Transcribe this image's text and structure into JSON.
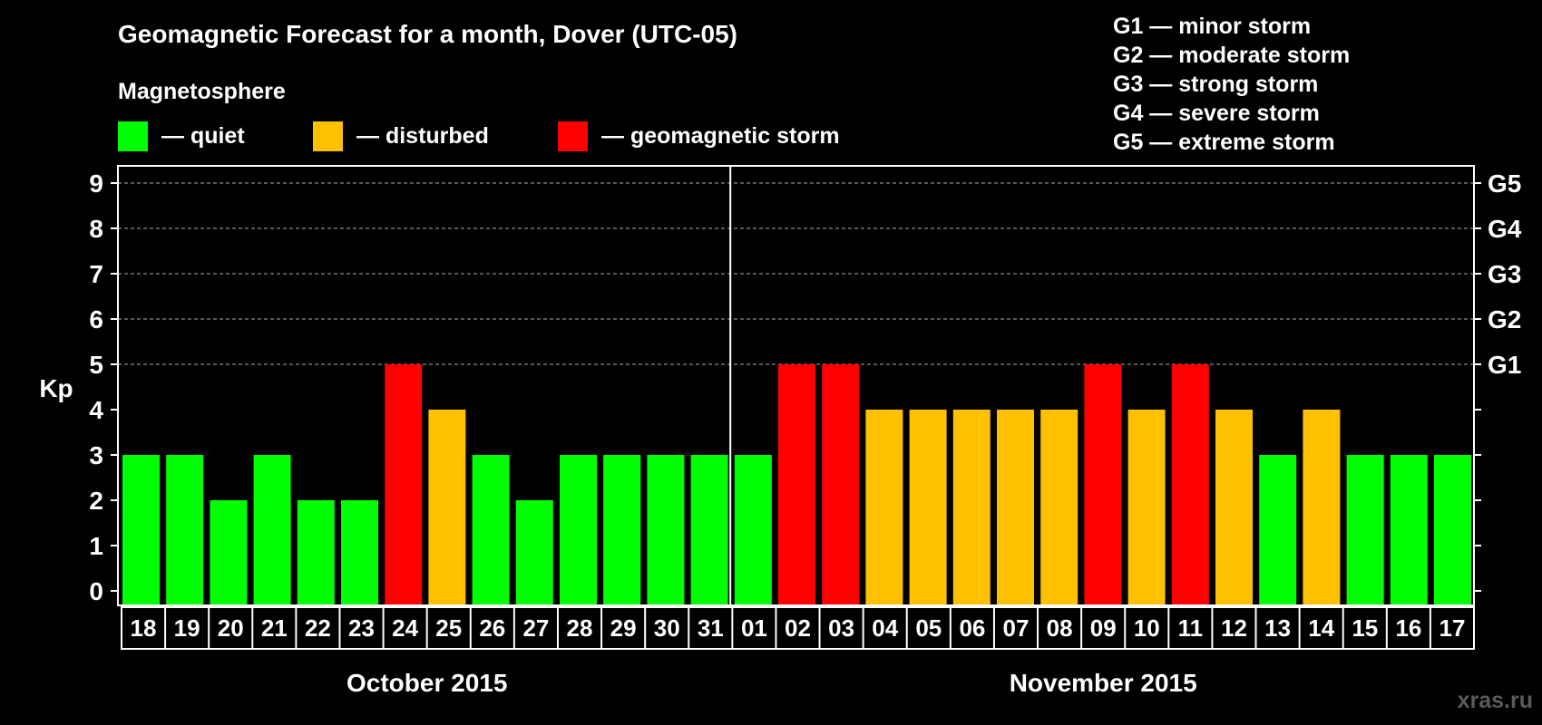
{
  "title": "Geomagnetic Forecast for a month, Dover (UTC-05)",
  "legend": {
    "heading": "Magnetosphere",
    "items": [
      {
        "label": "— quiet",
        "color": "#00ff00"
      },
      {
        "label": "— disturbed",
        "color": "#ffc000"
      },
      {
        "label": "— geomagnetic storm",
        "color": "#ff0000"
      }
    ]
  },
  "storm_scale": [
    "G1 — minor storm",
    "G2 — moderate storm",
    "G3 — strong storm",
    "G4 — severe storm",
    "G5 — extreme storm"
  ],
  "watermark": "xras.ru",
  "chart_data": {
    "type": "bar",
    "ylabel": "Kp",
    "ylim": [
      0,
      9
    ],
    "yticks": [
      0,
      1,
      2,
      3,
      4,
      5,
      6,
      7,
      8,
      9
    ],
    "right_ticks": [
      {
        "value": 5,
        "label": "G1"
      },
      {
        "value": 6,
        "label": "G2"
      },
      {
        "value": 7,
        "label": "G3"
      },
      {
        "value": 8,
        "label": "G4"
      },
      {
        "value": 9,
        "label": "G5"
      }
    ],
    "grid": "dashed horizontal at Kp 5–9",
    "categories": [
      "18",
      "19",
      "20",
      "21",
      "22",
      "23",
      "24",
      "25",
      "26",
      "27",
      "28",
      "29",
      "30",
      "31",
      "01",
      "02",
      "03",
      "04",
      "05",
      "06",
      "07",
      "08",
      "09",
      "10",
      "11",
      "12",
      "13",
      "14",
      "15",
      "16",
      "17"
    ],
    "values": [
      3,
      3,
      2,
      3,
      2,
      2,
      5,
      4,
      3,
      2,
      3,
      3,
      3,
      3,
      3,
      5,
      5,
      4,
      4,
      4,
      4,
      4,
      5,
      4,
      5,
      4,
      3,
      4,
      3,
      3,
      3
    ],
    "levels": [
      "quiet",
      "quiet",
      "quiet",
      "quiet",
      "quiet",
      "quiet",
      "storm",
      "disturbed",
      "quiet",
      "quiet",
      "quiet",
      "quiet",
      "quiet",
      "quiet",
      "quiet",
      "storm",
      "storm",
      "disturbed",
      "disturbed",
      "disturbed",
      "disturbed",
      "disturbed",
      "storm",
      "disturbed",
      "storm",
      "disturbed",
      "quiet",
      "disturbed",
      "quiet",
      "quiet",
      "quiet"
    ],
    "level_colors": {
      "quiet": "#00ff00",
      "disturbed": "#ffc000",
      "storm": "#ff0000"
    },
    "months": [
      {
        "label": "October 2015",
        "count": 14
      },
      {
        "label": "November 2015",
        "count": 17
      }
    ]
  }
}
